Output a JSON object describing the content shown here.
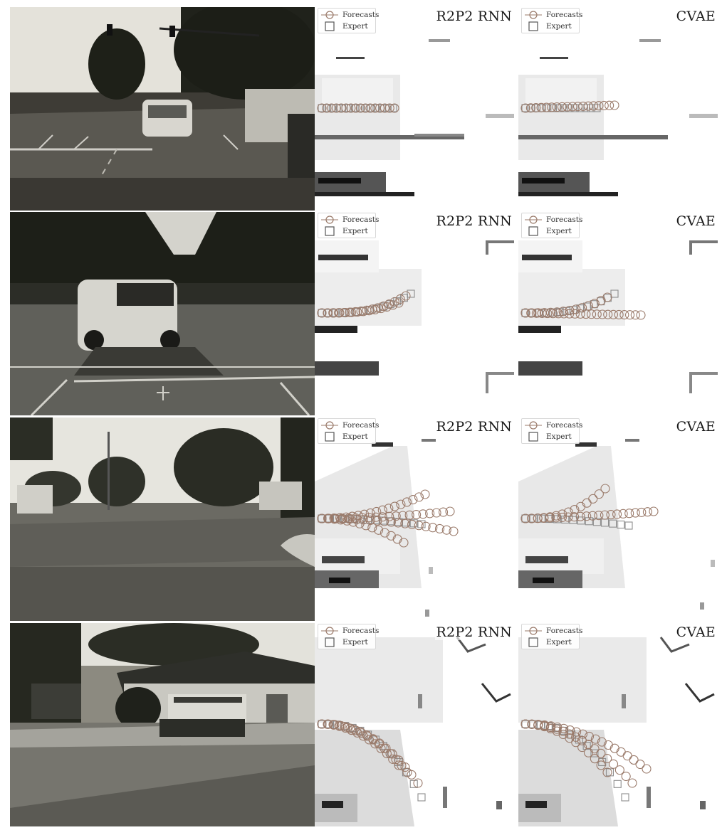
{
  "rows": [
    {
      "panels": [
        {
          "method": "R2P2 RNN",
          "legend": {
            "forecasts": "Forecasts",
            "expert": "Expert"
          }
        },
        {
          "method": "CVAE",
          "legend": {
            "forecasts": "Forecasts",
            "expert": "Expert"
          }
        }
      ]
    },
    {
      "panels": [
        {
          "method": "R2P2 RNN",
          "legend": {
            "forecasts": "Forecasts",
            "expert": "Expert"
          }
        },
        {
          "method": "CVAE",
          "legend": {
            "forecasts": "Forecasts",
            "expert": "Expert"
          }
        }
      ]
    },
    {
      "panels": [
        {
          "method": "R2P2 RNN",
          "legend": {
            "forecasts": "Forecasts",
            "expert": "Expert"
          }
        },
        {
          "method": "CVAE",
          "legend": {
            "forecasts": "Forecasts",
            "expert": "Expert"
          }
        }
      ]
    },
    {
      "panels": [
        {
          "method": "R2P2 RNN",
          "legend": {
            "forecasts": "Forecasts",
            "expert": "Expert"
          }
        },
        {
          "method": "CVAE",
          "legend": {
            "forecasts": "Forecasts",
            "expert": "Expert"
          }
        }
      ]
    }
  ],
  "colors": {
    "forecast": "#9a7a6a",
    "expert": "#8e8e8e",
    "obstacle": "#1a1a1a",
    "lidar": "#777777"
  }
}
